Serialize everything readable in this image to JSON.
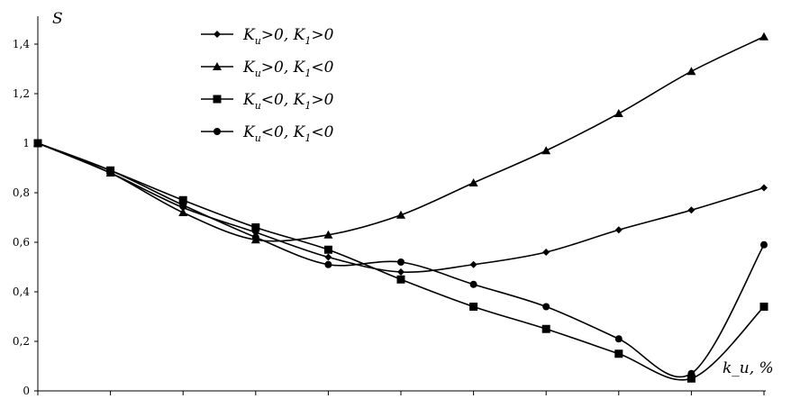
{
  "chart_data": {
    "type": "line",
    "ylabel": "S",
    "xlabel": "k_u, %",
    "ylim": [
      0,
      1.5
    ],
    "yticks": [
      "0",
      "0,2",
      "0,4",
      "0,6",
      "0,8",
      "1",
      "1,2",
      "1,4"
    ],
    "ytick_values": [
      0,
      0.2,
      0.4,
      0.6,
      0.8,
      1.0,
      1.2,
      1.4
    ],
    "x": [
      0,
      1,
      2,
      3,
      4,
      5,
      6,
      7,
      8,
      9,
      10
    ],
    "xlim": [
      0,
      10
    ],
    "grid": false,
    "legend_position": "top-center",
    "series": [
      {
        "name": "K_u>0, K_1>0",
        "marker": "diamond",
        "legend_text": ">0, ",
        "legend_text2": ">0",
        "values": [
          1.0,
          0.88,
          0.74,
          0.64,
          0.54,
          0.48,
          0.51,
          0.56,
          0.65,
          0.73,
          0.82
        ]
      },
      {
        "name": "K_u>0, K_1<0",
        "marker": "triangle",
        "legend_text": ">0, ",
        "legend_text2": "<0",
        "values": [
          1.0,
          0.88,
          0.72,
          0.61,
          0.63,
          0.71,
          0.84,
          0.97,
          1.12,
          1.29,
          1.43
        ]
      },
      {
        "name": "K_u<0, K_1>0",
        "marker": "square",
        "legend_text": "<0, ",
        "legend_text2": ">0",
        "values": [
          1.0,
          0.89,
          0.77,
          0.66,
          0.57,
          0.45,
          0.34,
          0.25,
          0.15,
          0.05,
          0.34
        ]
      },
      {
        "name": "K_u<0, K_1<0",
        "marker": "circle",
        "legend_text": "<0, ",
        "legend_text2": "<0",
        "values": [
          1.0,
          0.89,
          0.75,
          0.62,
          0.51,
          0.52,
          0.43,
          0.34,
          0.21,
          0.07,
          0.59
        ]
      }
    ]
  }
}
